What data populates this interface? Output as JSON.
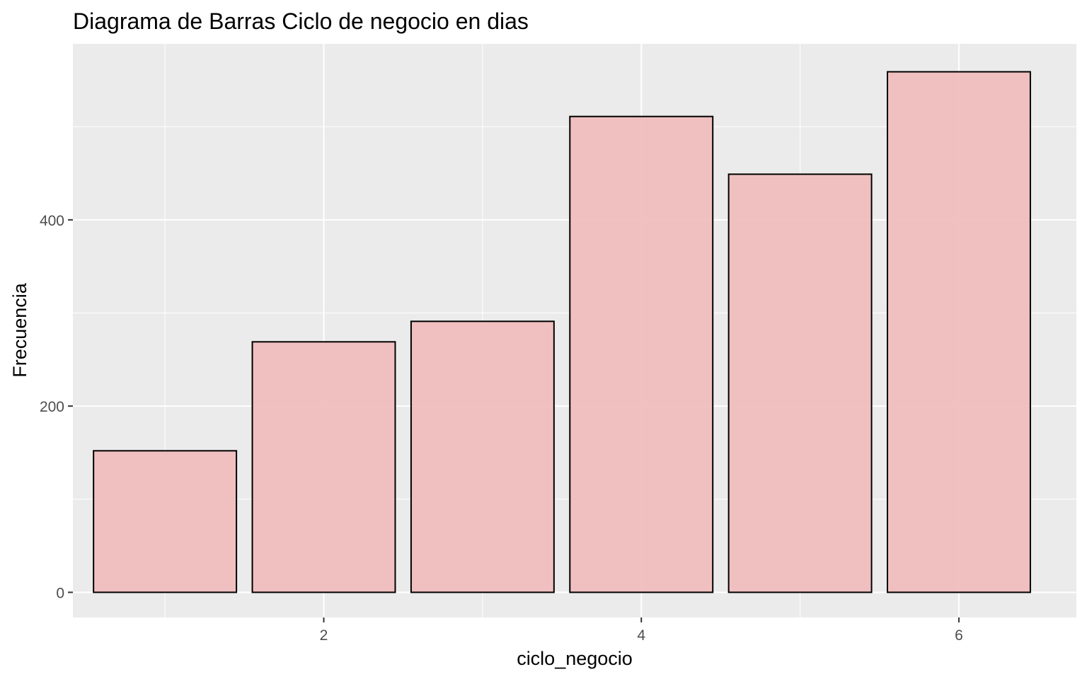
{
  "chart_data": {
    "type": "bar",
    "title": "Diagrama de Barras Ciclo de negocio en dias",
    "xlabel": "ciclo_negocio",
    "ylabel": "Frecuencia",
    "x": [
      1,
      2,
      3,
      4,
      5,
      6
    ],
    "values": [
      152,
      269,
      291,
      511,
      449,
      559
    ],
    "xlim": [
      0.42,
      6.74
    ],
    "ylim": [
      -27,
      589
    ],
    "x_ticks": [
      2,
      4,
      6
    ],
    "x_tick_labels": [
      "2",
      "4",
      "6"
    ],
    "y_ticks": [
      0,
      200,
      400
    ],
    "y_tick_labels": [
      "0",
      "200",
      "400"
    ],
    "grid": true,
    "colors": {
      "panel_background": "#ebebeb",
      "grid_line": "#ffffff",
      "bar_fill": "#f0bcbc",
      "bar_stroke": "#000000",
      "tick_label": "#4d4d4d",
      "tick_mark": "#333333"
    }
  }
}
